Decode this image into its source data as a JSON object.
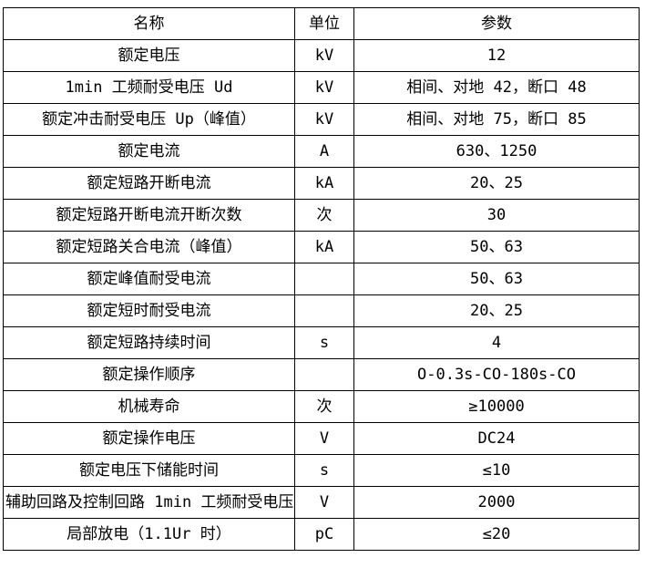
{
  "page": {
    "background_color": "#ffffff",
    "border_color": "#000000",
    "text_color": "#000000"
  },
  "table": {
    "headers": [
      {
        "label": "名称"
      },
      {
        "label": "单位"
      },
      {
        "label": "参数"
      }
    ],
    "rows": [
      {
        "name": "额定电压",
        "unit": "kV",
        "value": "12"
      },
      {
        "name": "1min 工频耐受电压 Ud",
        "unit": "kV",
        "value": "相间、对地 42，断口 48"
      },
      {
        "name": "额定冲击耐受电压 Up（峰值）",
        "unit": "kV",
        "value": "相间、对地 75，断口 85"
      },
      {
        "name": "额定电流",
        "unit": "A",
        "value": "630、1250"
      },
      {
        "name": "额定短路开断电流",
        "unit": "kA",
        "value": "20、25"
      },
      {
        "name": "额定短路开断电流开断次数",
        "unit": "次",
        "value": "30"
      },
      {
        "name": "额定短路关合电流（峰值）",
        "unit": "kA",
        "value": "50、63"
      },
      {
        "name": "额定峰值耐受电流",
        "unit": "",
        "value": "50、63"
      },
      {
        "name": "额定短时耐受电流",
        "unit": "",
        "value": "20、25"
      },
      {
        "name": "额定短路持续时间",
        "unit": "s",
        "value": "4"
      },
      {
        "name": "额定操作顺序",
        "unit": "",
        "value": "O-0.3s-CO-180s-CO"
      },
      {
        "name": "机械寿命",
        "unit": "次",
        "value": "≥10000"
      },
      {
        "name": "额定操作电压",
        "unit": "V",
        "value": "DC24"
      },
      {
        "name": "额定电压下储能时间",
        "unit": "s",
        "value": "≤10"
      },
      {
        "name": "辅助回路及控制回路 1min 工频耐受电压",
        "unit": "V",
        "value": "2000"
      },
      {
        "name": "局部放电（1.1Ur 时）",
        "unit": "pC",
        "value": "≤20"
      }
    ]
  }
}
